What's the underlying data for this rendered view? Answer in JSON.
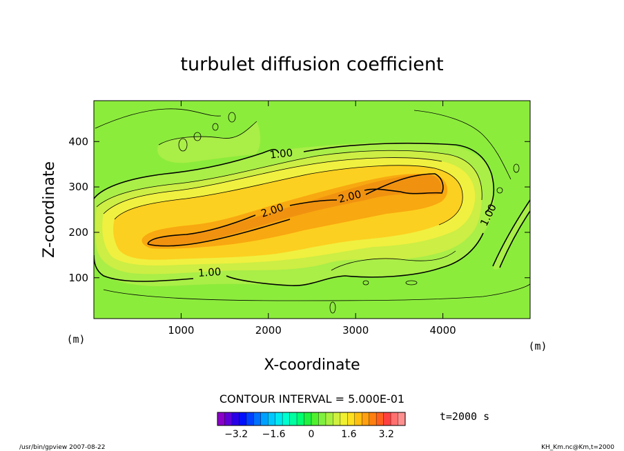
{
  "chart_data": {
    "type": "contour",
    "title": "turbulet diffusion coefficient",
    "xlabel": "X-coordinate",
    "ylabel": "Z-coordinate",
    "x_unit": "(m)",
    "y_unit": "(m)",
    "xlim": [
      0,
      5000
    ],
    "ylim": [
      10,
      490
    ],
    "x_ticks": [
      1000,
      2000,
      3000,
      4000
    ],
    "y_ticks": [
      100,
      200,
      300,
      400
    ],
    "contour_interval_text": "CONTOUR INTERVAL = 5.000E-01",
    "contour_labels": [
      "1.00",
      "1.00",
      "1.00",
      "2.00",
      "2.00"
    ],
    "colorbar": {
      "min": -4.0,
      "max": 4.0,
      "ticks": [
        "-3.2",
        "-1.6",
        "0",
        "1.6",
        "3.2"
      ],
      "colors": [
        "#8a00c8",
        "#6000d8",
        "#2a00e8",
        "#0010ff",
        "#0040ff",
        "#0070ff",
        "#00a0ff",
        "#00c8ff",
        "#00e8f0",
        "#00ffd0",
        "#00ffa0",
        "#00ff70",
        "#20f040",
        "#50f030",
        "#80f040",
        "#a8f040",
        "#d0f040",
        "#f0f030",
        "#ffe020",
        "#ffc010",
        "#ffa010",
        "#ff8010",
        "#ff6020",
        "#ff4040",
        "#ff7070",
        "#ff9090"
      ]
    },
    "time_label": "t=2000 s"
  },
  "footer": {
    "left": "/usr/bin/gpview  2007-08-22",
    "right": "KH_Km.nc@Km,t=2000"
  },
  "colors": {
    "level0": "#8cec3c",
    "level1": "#aaee48",
    "level2": "#cdee44",
    "level3": "#f0f040",
    "level4": "#fcd020",
    "level5": "#f8a810",
    "level6": "#f09210"
  }
}
